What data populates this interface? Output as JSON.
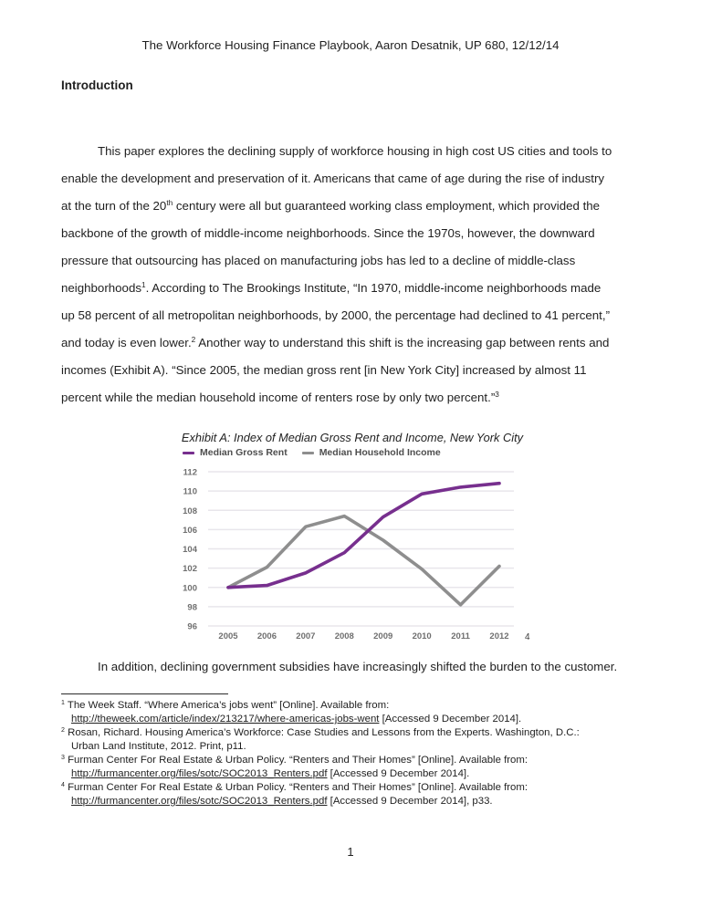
{
  "page": {
    "header_title": "The Workforce Housing Finance Playbook, Aaron Desatnik, UP 680, 12/12/14",
    "section_heading": "Introduction",
    "page_number": "1"
  },
  "body": {
    "lines": [
      {
        "indent": true,
        "segments": [
          {
            "t": "This paper explores the declining supply of workforce housing in high cost US cities and tools to"
          }
        ]
      },
      {
        "indent": false,
        "segments": [
          {
            "t": "enable the development and preservation of it. Americans that came of age during the rise of industry"
          }
        ]
      },
      {
        "indent": false,
        "segments": [
          {
            "t": "at the turn of the 20"
          },
          {
            "t": "th",
            "sup": true
          },
          {
            "t": " century were all but guaranteed working class employment, which provided the"
          }
        ]
      },
      {
        "indent": false,
        "segments": [
          {
            "t": "backbone of the growth of middle-income neighborhoods. Since the 1970s, however, the downward"
          }
        ]
      },
      {
        "indent": false,
        "segments": [
          {
            "t": "pressure that outsourcing has placed on manufacturing jobs has led to a decline of middle-class"
          }
        ]
      },
      {
        "indent": false,
        "segments": [
          {
            "t": "neighborhoods"
          },
          {
            "t": "1",
            "sup": true
          },
          {
            "t": ". According to The Brookings Institute, “In 1970, middle-income neighborhoods made"
          }
        ]
      },
      {
        "indent": false,
        "segments": [
          {
            "t": "up 58 percent of all metropolitan neighborhoods, by 2000, the percentage had declined to 41 percent,”"
          }
        ]
      },
      {
        "indent": false,
        "segments": [
          {
            "t": "and today is even lower."
          },
          {
            "t": "2",
            "sup": true
          },
          {
            "t": " Another way to understand this shift is the increasing gap between rents and"
          }
        ]
      },
      {
        "indent": false,
        "segments": [
          {
            "t": "incomes (Exhibit A). “Since 2005, the median gross rent [in New York City] increased by almost 11"
          }
        ]
      },
      {
        "indent": false,
        "segments": [
          {
            "t": "percent while the median household income of renters rose by only two percent.”"
          },
          {
            "t": "3",
            "sup": true
          }
        ]
      }
    ],
    "closing": {
      "segments": [
        {
          "t": "In addition, declining government subsidies have increasingly shifted the burden to the customer."
        }
      ]
    }
  },
  "chart_data": {
    "type": "line",
    "title": "Exhibit A: Index of Median Gross Rent and Income, New York City",
    "categories": [
      "2005",
      "2006",
      "2007",
      "2008",
      "2009",
      "2010",
      "2011",
      "2012"
    ],
    "series": [
      {
        "name": "Median Gross Rent",
        "color": "#772F8E",
        "values": [
          100,
          100.2,
          101.5,
          103.6,
          107.3,
          109.7,
          110.4,
          110.8
        ]
      },
      {
        "name": "Median Household Income",
        "color": "#8E8E8E",
        "values": [
          100,
          102.1,
          106.3,
          107.4,
          104.9,
          101.9,
          98.2,
          102.2
        ]
      }
    ],
    "ylim": [
      96,
      112
    ],
    "yticks": [
      96,
      98,
      100,
      102,
      104,
      106,
      108,
      110,
      112
    ],
    "grid": true,
    "gridline_color": "#e8e6eb",
    "tick_label_color": "#6f6f6f",
    "legend_position": "top-left",
    "footnote_ref": "4"
  },
  "footnotes": {
    "items": [
      {
        "num": "1",
        "lines": [
          [
            {
              "t": "1",
              "sup": true
            },
            {
              "t": " The Week Staff. “Where America’s jobs went” [Online]. Available from:"
            }
          ],
          [
            {
              "t": "http://theweek.com/article/index/213217/where-americas-jobs-went",
              "link": true
            },
            {
              "t": " [Accessed 9 December 2014]."
            }
          ]
        ]
      },
      {
        "num": "2",
        "lines": [
          [
            {
              "t": "2",
              "sup": true
            },
            {
              "t": " Rosan, Richard. Housing America’s Workforce: Case Studies and Lessons from the Experts. Washington, D.C.:"
            }
          ],
          [
            {
              "t": "Urban Land Institute, 2012. Print, p11."
            }
          ]
        ]
      },
      {
        "num": "3",
        "lines": [
          [
            {
              "t": "3",
              "sup": true
            },
            {
              "t": " Furman Center For Real Estate & Urban Policy. “Renters and Their Homes” [Online]. Available from:"
            }
          ],
          [
            {
              "t": "http://furmancenter.org/files/sotc/SOC2013_Renters.pdf",
              "link": true
            },
            {
              "t": " [Accessed 9 December 2014]."
            }
          ]
        ]
      },
      {
        "num": "4",
        "lines": [
          [
            {
              "t": "4",
              "sup": true
            },
            {
              "t": " Furman Center For Real Estate & Urban Policy. “Renters and Their Homes” [Online]. Available from:"
            }
          ],
          [
            {
              "t": "http://furmancenter.org/files/sotc/SOC2013_Renters.pdf",
              "link": true
            },
            {
              "t": " [Accessed 9 December 2014], p33."
            }
          ]
        ]
      }
    ]
  }
}
